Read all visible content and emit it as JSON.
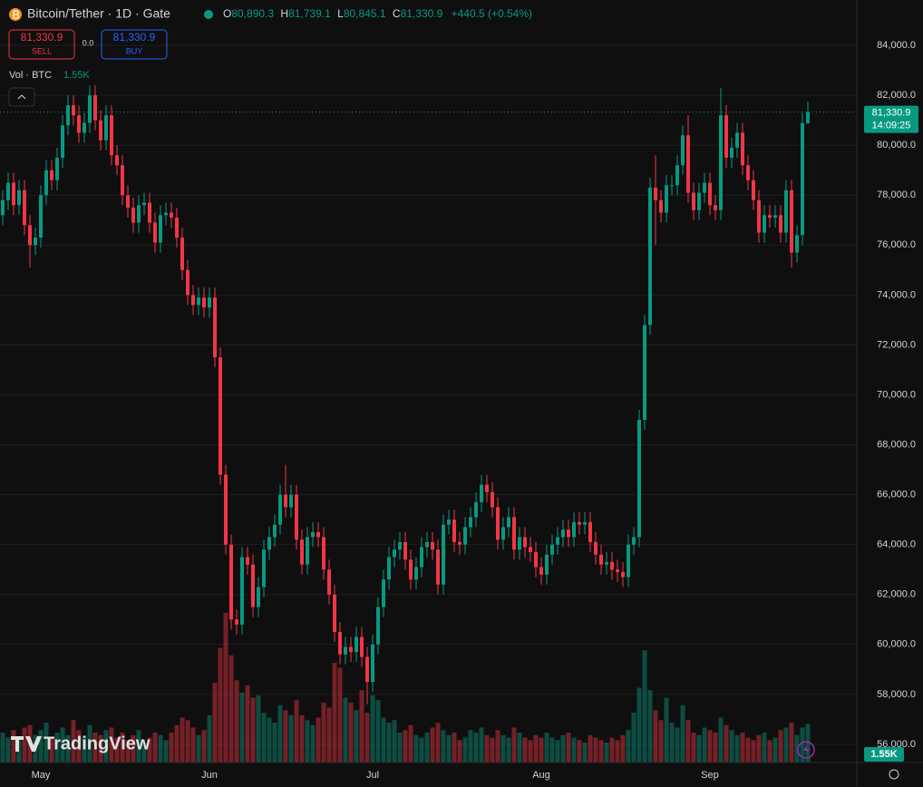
{
  "header": {
    "symbol": "Bitcoin/Tether · 1D · Gate",
    "ohlc": [
      {
        "prefix": "O",
        "value": "80,890.3"
      },
      {
        "prefix": "H",
        "value": "81,739.1"
      },
      {
        "prefix": "L",
        "value": "80,845.1"
      },
      {
        "prefix": "C",
        "value": "81,330.9"
      }
    ],
    "change": "+440.5 (+0.54%)"
  },
  "trade_panel": {
    "sell_price": "81,330.9",
    "sell_label": "SELL",
    "spread": "0.0",
    "buy_price": "81,330.9",
    "buy_label": "BUY"
  },
  "logo": "TradingView",
  "chart_data": {
    "type": "candlestick",
    "categories": [
      null,
      null,
      null,
      null,
      null,
      null,
      null,
      "May",
      null,
      null,
      null,
      null,
      null,
      null,
      null,
      null,
      null,
      null,
      null,
      null,
      null,
      null,
      null,
      null,
      null,
      null,
      null,
      null,
      null,
      null,
      null,
      null,
      null,
      null,
      null,
      null,
      null,
      null,
      "Jun",
      null,
      null,
      null,
      null,
      null,
      null,
      null,
      null,
      null,
      null,
      null,
      null,
      null,
      null,
      null,
      null,
      null,
      null,
      null,
      null,
      null,
      null,
      null,
      null,
      null,
      null,
      null,
      null,
      null,
      "Jul",
      null,
      null,
      null,
      null,
      null,
      null,
      null,
      null,
      null,
      null,
      null,
      null,
      null,
      null,
      null,
      null,
      null,
      null,
      null,
      null,
      null,
      null,
      null,
      null,
      null,
      null,
      null,
      null,
      null,
      null,
      "Aug",
      null,
      null,
      null,
      null,
      null,
      null,
      null,
      null,
      null,
      null,
      null,
      null,
      null,
      null,
      null,
      null,
      null,
      null,
      null,
      null,
      null,
      null,
      null,
      null,
      null,
      null,
      null,
      null,
      null,
      null,
      "Sep",
      null,
      null,
      null,
      null,
      null,
      null,
      null,
      null,
      null,
      null,
      null,
      null,
      null,
      null,
      null,
      null,
      null,
      null
    ],
    "open": [
      77200,
      77800,
      78500,
      77600,
      78200,
      76800,
      76000,
      76300,
      78000,
      79000,
      78600,
      79500,
      80800,
      81600,
      81200,
      80500,
      80900,
      82000,
      81000,
      80200,
      81200,
      79600,
      79200,
      78000,
      77500,
      76900,
      77600,
      77700,
      76900,
      76100,
      77200,
      77300,
      77100,
      76300,
      75000,
      74000,
      73600,
      73900,
      73500,
      73900,
      71500,
      66800,
      64000,
      61000,
      60800,
      63500,
      63200,
      61500,
      62300,
      63800,
      64300,
      64800,
      66000,
      65500,
      66000,
      64200,
      63200,
      64300,
      64500,
      64300,
      63000,
      62000,
      60500,
      59600,
      59900,
      59700,
      60300,
      59500,
      58500,
      60000,
      61500,
      62600,
      63500,
      63800,
      64100,
      63400,
      62600,
      63100,
      63900,
      64100,
      63800,
      62400,
      64800,
      65000,
      64100,
      64000,
      64700,
      65100,
      65700,
      66400,
      66100,
      65500,
      64200,
      64700,
      65100,
      63800,
      64300,
      63900,
      63700,
      63100,
      62800,
      63600,
      64000,
      64300,
      64600,
      64300,
      64900,
      64800,
      64900,
      64100,
      63600,
      63200,
      63300,
      63000,
      62900,
      62700,
      64000,
      64300,
      69000,
      72800,
      78300,
      77800,
      77300,
      78400,
      78400,
      79200,
      80400,
      78100,
      77400,
      78100,
      78500,
      77600,
      77400,
      81200,
      79500,
      79900,
      80500,
      79200,
      78600,
      77800,
      76500,
      77200,
      77100,
      77200,
      76500,
      78200,
      75700,
      76400,
      80890.3
    ],
    "high": [
      78200,
      78900,
      78900,
      78600,
      78600,
      77200,
      76700,
      78400,
      79400,
      79400,
      79900,
      81200,
      82000,
      82000,
      81600,
      81300,
      82400,
      82400,
      81400,
      81600,
      81600,
      80000,
      79600,
      78400,
      77900,
      78000,
      78100,
      78100,
      77300,
      77600,
      77700,
      77700,
      77500,
      76700,
      75400,
      74400,
      74300,
      74300,
      74300,
      74300,
      71900,
      67200,
      64400,
      61400,
      63900,
      63900,
      63600,
      62700,
      64200,
      64700,
      65200,
      66400,
      67200,
      66400,
      66400,
      64600,
      64700,
      64900,
      64900,
      64700,
      63400,
      62400,
      60900,
      60300,
      60300,
      60700,
      60700,
      59900,
      60400,
      61900,
      63000,
      63900,
      64200,
      64500,
      64500,
      63800,
      63500,
      64300,
      64500,
      64500,
      64200,
      65200,
      65400,
      65400,
      64500,
      65100,
      65500,
      66100,
      66800,
      66800,
      66500,
      65900,
      65100,
      65500,
      65500,
      64700,
      64700,
      64300,
      64100,
      63500,
      64000,
      64400,
      64700,
      65000,
      65000,
      65300,
      65300,
      65300,
      65300,
      64500,
      64000,
      63700,
      63700,
      63400,
      63300,
      64400,
      64700,
      69400,
      73200,
      78700,
      79600,
      78200,
      78800,
      78800,
      79600,
      80800,
      81200,
      78500,
      78500,
      78900,
      78900,
      78000,
      82300,
      81600,
      80300,
      80900,
      80900,
      79600,
      79000,
      78200,
      77600,
      77600,
      77600,
      77600,
      78600,
      78600,
      76800,
      81300,
      81739.1
    ],
    "low": [
      76800,
      77400,
      77200,
      77200,
      76400,
      75100,
      75600,
      75900,
      77600,
      78200,
      78200,
      79100,
      80400,
      80800,
      80100,
      80100,
      80500,
      80600,
      79800,
      79800,
      79200,
      78800,
      77600,
      77100,
      76500,
      76500,
      77200,
      76500,
      75700,
      75700,
      76800,
      76700,
      75900,
      74600,
      73600,
      73200,
      73200,
      73100,
      73100,
      71100,
      66400,
      63600,
      60600,
      60400,
      60400,
      62800,
      61100,
      61100,
      61900,
      63400,
      63900,
      64400,
      65100,
      65100,
      63800,
      62800,
      62800,
      63900,
      63900,
      62600,
      61600,
      60100,
      59200,
      59200,
      59300,
      59300,
      59100,
      57600,
      58100,
      59600,
      61100,
      62200,
      63100,
      63400,
      63000,
      62200,
      62200,
      62700,
      63500,
      63400,
      62000,
      62000,
      64400,
      63700,
      63600,
      63600,
      64300,
      64700,
      65300,
      65700,
      65100,
      63800,
      63800,
      64300,
      63400,
      63400,
      63500,
      63300,
      62700,
      62400,
      62400,
      63200,
      63600,
      63900,
      63900,
      63900,
      64400,
      64400,
      63700,
      63200,
      62800,
      62800,
      62600,
      62500,
      62300,
      62300,
      63600,
      63900,
      68600,
      72400,
      76000,
      76900,
      76900,
      78000,
      78000,
      78800,
      77700,
      77000,
      77000,
      77700,
      77200,
      77000,
      77000,
      79100,
      79100,
      79500,
      78800,
      78200,
      77400,
      76100,
      76100,
      76700,
      76700,
      76100,
      76100,
      75100,
      75300,
      76000,
      80845.1
    ],
    "close": [
      77800,
      78500,
      77600,
      78200,
      76800,
      76000,
      76300,
      78000,
      79000,
      78600,
      79500,
      80800,
      81600,
      81200,
      80500,
      80900,
      82000,
      81000,
      80200,
      81200,
      79600,
      79200,
      78000,
      77500,
      76900,
      77600,
      77700,
      76900,
      76100,
      77200,
      77300,
      77100,
      76300,
      75000,
      74000,
      73600,
      73900,
      73500,
      73900,
      71500,
      66800,
      64000,
      61000,
      60800,
      63500,
      63200,
      61500,
      62300,
      63800,
      64300,
      64800,
      66000,
      65500,
      66000,
      64200,
      63200,
      64300,
      64500,
      64300,
      63000,
      62000,
      60500,
      59600,
      59900,
      59700,
      60300,
      59500,
      58500,
      60000,
      61500,
      62600,
      63500,
      63800,
      64100,
      63400,
      62600,
      63100,
      63900,
      64100,
      63800,
      62400,
      64800,
      65000,
      64100,
      64000,
      64700,
      65100,
      65700,
      66400,
      66100,
      65500,
      64200,
      64700,
      65100,
      63800,
      64300,
      63900,
      63700,
      63100,
      62800,
      63600,
      64000,
      64300,
      64600,
      64300,
      64900,
      64800,
      64900,
      64100,
      63600,
      63200,
      63300,
      63000,
      62900,
      62700,
      64000,
      64300,
      69000,
      72800,
      78300,
      77800,
      77300,
      78400,
      78400,
      79200,
      80400,
      78100,
      77400,
      78100,
      78500,
      77600,
      77400,
      81200,
      79500,
      79900,
      80500,
      79200,
      78600,
      77800,
      76500,
      77200,
      77100,
      77200,
      76500,
      78200,
      75700,
      76400,
      80890.3,
      81330.9
    ],
    "last_price_label": "81,330.9",
    "countdown": "14:09:25",
    "volume": {
      "name": "Vol · BTC",
      "last_label": "1.55K",
      "values": [
        1200,
        1000,
        1300,
        900,
        1400,
        1500,
        1100,
        1300,
        1600,
        1000,
        1200,
        1400,
        1100,
        1700,
        1300,
        1000,
        1500,
        1200,
        1100,
        1300,
        1400,
        1000,
        1200,
        900,
        1100,
        1300,
        800,
        1000,
        1200,
        1100,
        900,
        1200,
        1500,
        1800,
        1700,
        1400,
        1100,
        1300,
        1900,
        3200,
        4600,
        6000,
        4300,
        3300,
        2800,
        3100,
        2600,
        2700,
        2000,
        1800,
        1600,
        2300,
        2100,
        1900,
        2500,
        1900,
        1700,
        1500,
        1800,
        2400,
        2200,
        4000,
        3800,
        2600,
        2400,
        2100,
        2900,
        2000,
        2700,
        2500,
        1800,
        1600,
        1700,
        1200,
        1300,
        1500,
        1100,
        1000,
        1200,
        1400,
        1600,
        1300,
        1100,
        1200,
        900,
        1000,
        1300,
        1200,
        1400,
        1100,
        1000,
        1300,
        1100,
        1000,
        1400,
        1200,
        1000,
        900,
        1100,
        1000,
        1200,
        1000,
        900,
        1100,
        1200,
        1000,
        900,
        800,
        1100,
        1000,
        900,
        800,
        1000,
        900,
        1100,
        1300,
        2000,
        3000,
        4500,
        2900,
        2100,
        1700,
        2600,
        1600,
        1400,
        2300,
        1700,
        1200,
        1100,
        1400,
        1300,
        1200,
        1800,
        1500,
        1300,
        1100,
        1200,
        1000,
        900,
        1100,
        1200,
        900,
        1000,
        1300,
        1400,
        1600,
        1100,
        1400,
        1550
      ]
    },
    "ylim": [
      55270,
      85820
    ],
    "yticks": [
      {
        "value": 56000,
        "label": "56,000.0"
      },
      {
        "value": 58000,
        "label": "58,000.0"
      },
      {
        "value": 60000,
        "label": "60,000.0"
      },
      {
        "value": 62000,
        "label": "62,000.0"
      },
      {
        "value": 64000,
        "label": "64,000.0"
      },
      {
        "value": 66000,
        "label": "66,000.0"
      },
      {
        "value": 68000,
        "label": "68,000.0"
      },
      {
        "value": 70000,
        "label": "70,000.0"
      },
      {
        "value": 72000,
        "label": "72,000.0"
      },
      {
        "value": 74000,
        "label": "74,000.0"
      },
      {
        "value": 76000,
        "label": "76,000.0"
      },
      {
        "value": 78000,
        "label": "78,000.0"
      },
      {
        "value": 80000,
        "label": "80,000.0"
      },
      {
        "value": 82000,
        "label": "82,000.0"
      },
      {
        "value": 84000,
        "label": "84,000.0"
      }
    ],
    "grid": true,
    "up_color": "#089981",
    "down_color": "#f23645"
  }
}
